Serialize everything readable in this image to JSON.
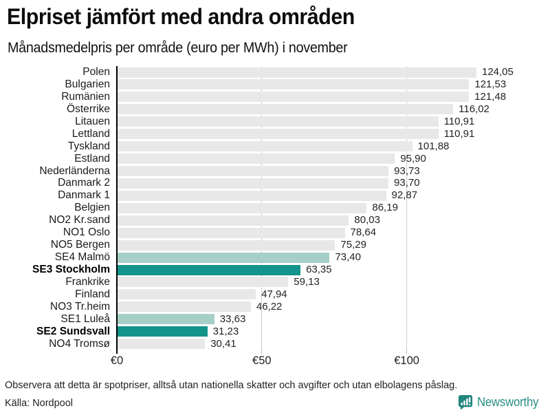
{
  "header": {
    "title": "Elpriset jämfört med andra områden",
    "subtitle": "Månadsmedelpris per område (euro per MWh) i november"
  },
  "footer": {
    "note": "Observera att detta är spotpriser, alltså utan nationella skatter och avgifter och utan elbolagens påslag.",
    "source": "Källa: Nordpool",
    "brand": "Newsworthy",
    "brand_color": "#2a8d86",
    "brand_icon": "newsworthy-chart-bubble-icon"
  },
  "chart_data": {
    "type": "bar",
    "orientation": "horizontal",
    "title": "Elpriset jämfört med andra områden",
    "subtitle": "Månadsmedelpris per område (euro per MWh) i november",
    "unit": "euro per MWh",
    "categories": [
      "Polen",
      "Bulgarien",
      "Rumänien",
      "Österrike",
      "Litauen",
      "Lettland",
      "Tyskland",
      "Estland",
      "Nederländerna",
      "Danmark 2",
      "Danmark 1",
      "Belgien",
      "NO2 Kr.sand",
      "NO1 Oslo",
      "NO5 Bergen",
      "SE4 Malmö",
      "SE3 Stockholm",
      "Frankrike",
      "Finland",
      "NO3 Tr.heim",
      "SE1 Luleå",
      "SE2 Sundsvall",
      "NO4 Tromsø"
    ],
    "values": [
      124.05,
      121.53,
      121.48,
      116.02,
      110.91,
      110.91,
      101.88,
      95.9,
      93.73,
      93.7,
      92.87,
      86.19,
      80.03,
      78.64,
      75.29,
      73.4,
      63.35,
      59.13,
      47.94,
      46.22,
      33.63,
      31.23,
      30.41
    ],
    "value_labels": [
      "124,05",
      "121,53",
      "121,48",
      "116,02",
      "110,91",
      "110,91",
      "101,88",
      "95,90",
      "93,73",
      "93,70",
      "92,87",
      "86,19",
      "80,03",
      "78,64",
      "75,29",
      "73,40",
      "63,35",
      "59,13",
      "47,94",
      "46,22",
      "33,63",
      "31,23",
      "30,41"
    ],
    "emphasis": [
      "none",
      "none",
      "none",
      "none",
      "none",
      "none",
      "none",
      "none",
      "none",
      "none",
      "none",
      "none",
      "none",
      "none",
      "none",
      "light",
      "strong",
      "none",
      "none",
      "none",
      "light",
      "strong",
      "none"
    ],
    "x_ticks": [
      {
        "value": 0,
        "label": "€0"
      },
      {
        "value": 50,
        "label": "€50"
      },
      {
        "value": 100,
        "label": "€100"
      }
    ],
    "xlim": [
      0,
      135
    ],
    "grid": "vertical",
    "legend": "none",
    "colors": {
      "bar_default": "#e8e8e8",
      "bar_highlight_light": "#a5cfc7",
      "bar_highlight_strong": "#12948a",
      "gridline": "#cccccc",
      "axis": "#000000"
    }
  }
}
